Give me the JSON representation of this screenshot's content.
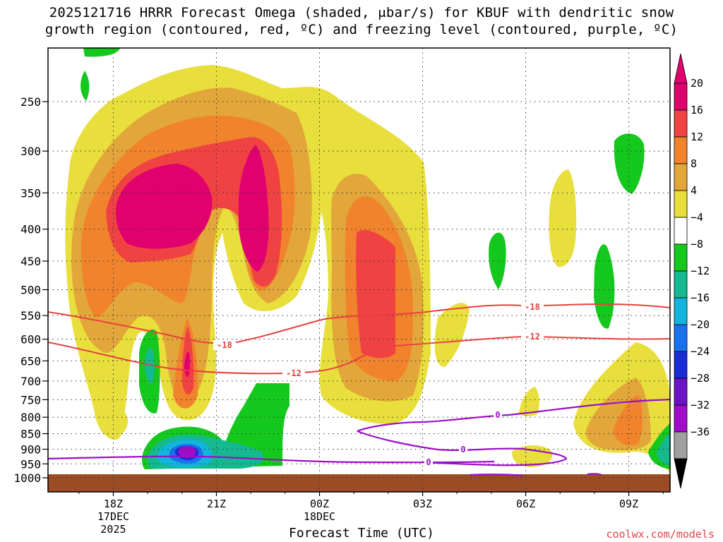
{
  "title": {
    "line1": "2025121716 HRRR Forecast Omega (shaded, μbar/s) for KBUF with dendritic snow",
    "line2": "growth region (contoured, red, ºC) and freezing level (contoured, purple, ºC)"
  },
  "xlabel": "Forecast Time (UTC)",
  "credit": "coolwx.com/models",
  "chart_data": {
    "type": "heatmap",
    "ylim": [
      1000,
      200
    ],
    "yscale": "log-pressure",
    "y_ticks": [
      250,
      300,
      350,
      400,
      450,
      500,
      550,
      600,
      650,
      700,
      750,
      800,
      850,
      900,
      950,
      1000
    ],
    "xlim_hours_from_18Z": [
      -1.9,
      16.2
    ],
    "x_ticks": [
      {
        "h": 0,
        "label": "18Z",
        "sub": [
          "17DEC",
          "2025"
        ]
      },
      {
        "h": 3,
        "label": "21Z",
        "sub": []
      },
      {
        "h": 6,
        "label": "00Z",
        "sub": [
          "18DEC"
        ]
      },
      {
        "h": 9,
        "label": "03Z",
        "sub": []
      },
      {
        "h": 12,
        "label": "06Z",
        "sub": []
      },
      {
        "h": 15,
        "label": "09Z",
        "sub": []
      }
    ],
    "grid": "dotted",
    "colorbar": {
      "labels": [
        "20",
        "16",
        "12",
        "8",
        "4",
        "−4",
        "−8",
        "−12",
        "−16",
        "−20",
        "−24",
        "−28",
        "−32",
        "−36"
      ],
      "colors": [
        "#e0006e",
        "#f04242",
        "#f0832c",
        "#e3a63a",
        "#e8de3c",
        "#ffffff",
        "#15c81e",
        "#14b98f",
        "#13b5dc",
        "#1a71ee",
        "#1a2bd8",
        "#6a14c3",
        "#a00cc8",
        "#a0a0a0"
      ],
      "top_color": "#e0006e",
      "bottom_color": "#000000"
    },
    "contours": [
      {
        "name": "dendritic snow growth region",
        "color": "#e84040",
        "labels": [
          "-18",
          "-12"
        ]
      },
      {
        "name": "freezing level",
        "color": "#9a10c8",
        "labels": [
          "0",
          "0",
          "0"
        ]
      }
    ],
    "ground_color": "#9b4c25"
  }
}
